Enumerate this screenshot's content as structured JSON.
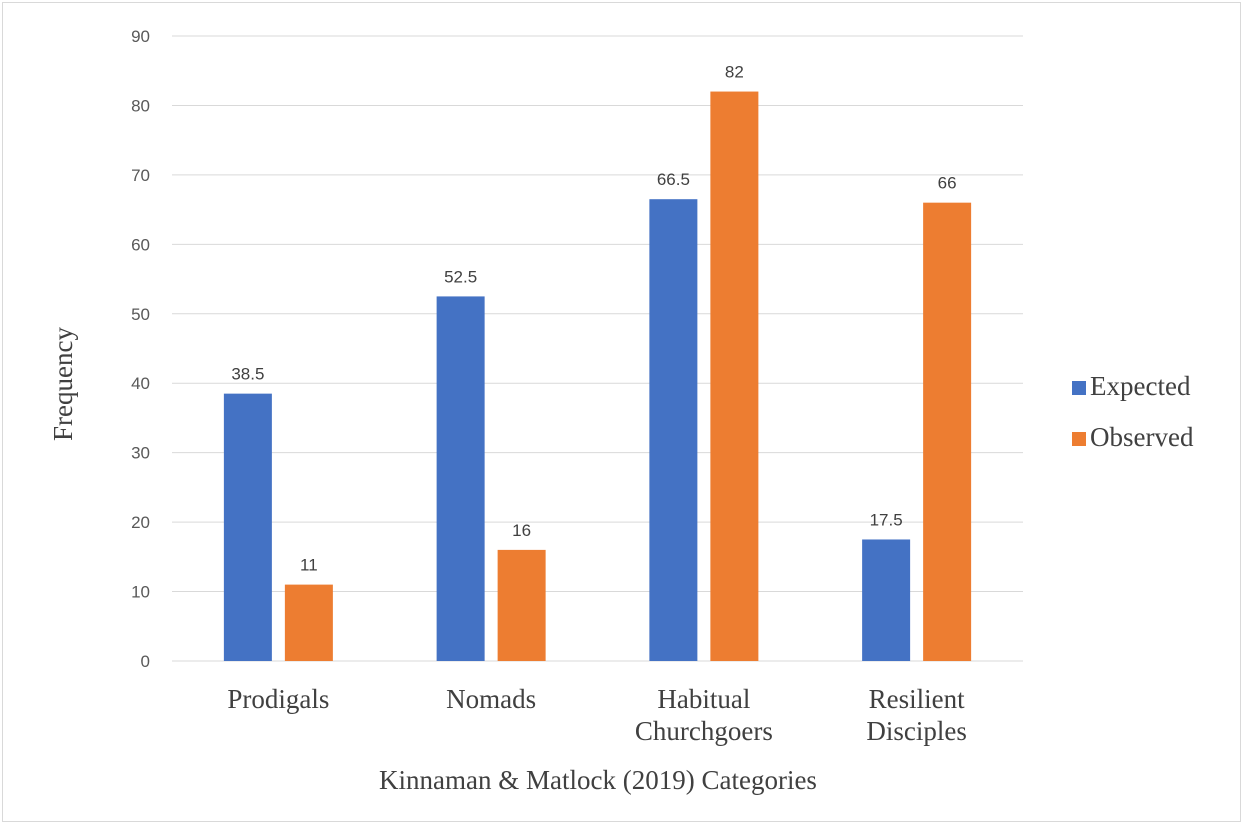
{
  "chart_data": {
    "type": "bar",
    "title": "",
    "xlabel": "Kinnaman & Matlock (2019) Categories",
    "ylabel": "Frequency",
    "categories": [
      [
        "Prodigals"
      ],
      [
        "Nomads"
      ],
      [
        "Habitual",
        "Churchgoers"
      ],
      [
        "Resilient",
        "Disciples"
      ]
    ],
    "series": [
      {
        "name": "Expected",
        "color": "#4472c4",
        "values": [
          38.5,
          52.5,
          66.5,
          17.5
        ]
      },
      {
        "name": "Observed",
        "color": "#ed7d31",
        "values": [
          11,
          16,
          82,
          66
        ]
      }
    ],
    "ylim": [
      0,
      90
    ],
    "yticks": [
      0,
      10,
      20,
      30,
      40,
      50,
      60,
      70,
      80,
      90
    ],
    "grid": true,
    "gridline_color": "#d9d9d9",
    "legend_position": "right",
    "data_labels": true
  }
}
